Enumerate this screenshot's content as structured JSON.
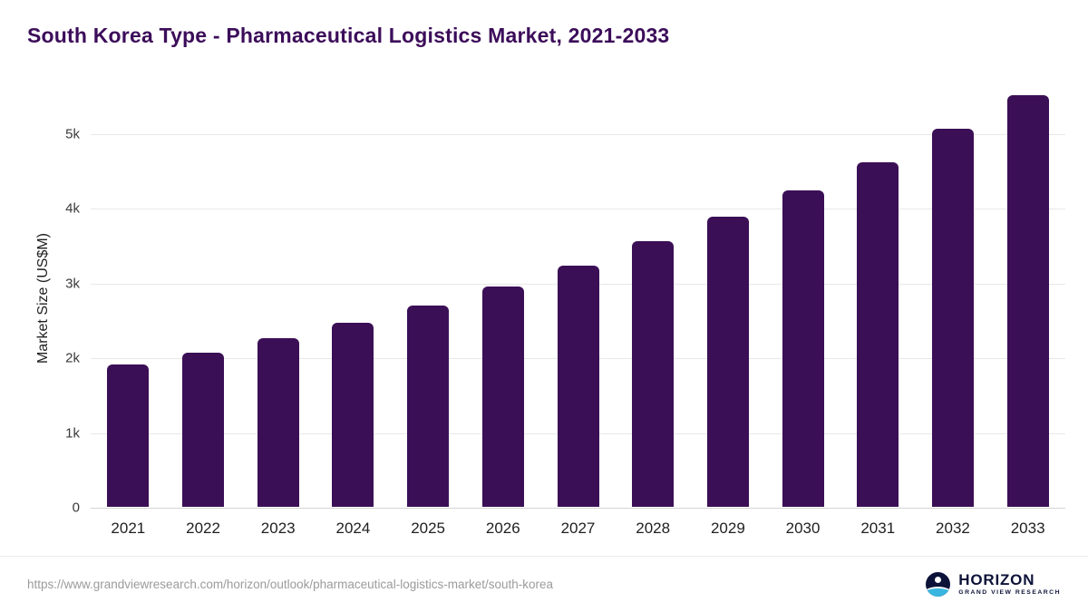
{
  "page": {
    "title": "South Korea Type - Pharmaceutical Logistics Market, 2021-2033"
  },
  "chart_data": {
    "type": "bar",
    "title": "South Korea Type - Pharmaceutical Logistics Market, 2021-2033",
    "categories": [
      "2021",
      "2022",
      "2023",
      "2024",
      "2025",
      "2026",
      "2027",
      "2028",
      "2029",
      "2030",
      "2031",
      "2032",
      "2033"
    ],
    "values": [
      1900,
      2060,
      2250,
      2460,
      2690,
      2950,
      3230,
      3550,
      3880,
      4230,
      4610,
      5060,
      5500
    ],
    "xlabel": "",
    "ylabel": "Market Size (US$M)",
    "ylim": [
      0,
      5600
    ],
    "ytick_values": [
      0,
      1000,
      2000,
      3000,
      4000,
      5000
    ],
    "ytick_labels": [
      "0",
      "1k",
      "2k",
      "3k",
      "4k",
      "5k"
    ],
    "bar_color": "#3b0f56",
    "grid": true,
    "legend": false
  },
  "colors": {
    "title": "#3c0d5a",
    "bar": "#3b0f56",
    "gridline": "#e8e8e8",
    "logo_navy": "#0d1238",
    "logo_blue": "#39b6e0"
  },
  "footer": {
    "source_url": "https://www.grandviewresearch.com/horizon/outlook/pharmaceutical-logistics-market/south-korea",
    "logo": {
      "title": "HORIZON",
      "subtitle": "GRAND VIEW RESEARCH"
    }
  }
}
